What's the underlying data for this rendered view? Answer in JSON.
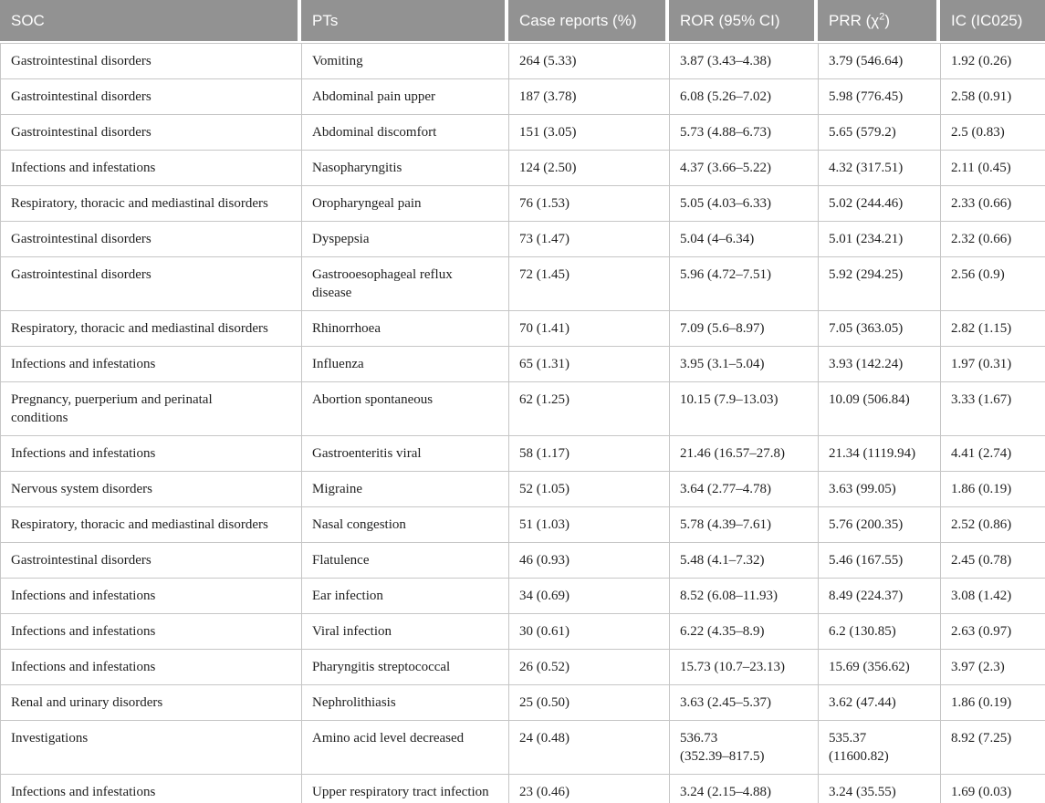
{
  "colors": {
    "header_bg": "#929292",
    "header_text": "#fdfdfd",
    "grid_border": "#c6c6c6",
    "body_text": "#1f1f1f"
  },
  "table": {
    "header": {
      "soc": "SOC",
      "pts": "PTs",
      "case_reports": "Case reports (%)",
      "ror": "ROR (95% CI)",
      "prr_prefix": "PRR (χ",
      "prr_sup": "2",
      "prr_suffix": ")",
      "ic": "IC (IC025)"
    },
    "rows": [
      {
        "soc": "Gastrointestinal disorders",
        "pt": "Vomiting",
        "cases": "264 (5.33)",
        "ror": "3.87 (3.43–4.38)",
        "prr": "3.79 (546.64)",
        "ic": "1.92 (0.26)"
      },
      {
        "soc": "Gastrointestinal disorders",
        "pt": "Abdominal pain upper",
        "cases": "187 (3.78)",
        "ror": "6.08 (5.26–7.02)",
        "prr": "5.98 (776.45)",
        "ic": "2.58 (0.91)"
      },
      {
        "soc": "Gastrointestinal disorders",
        "pt": "Abdominal discomfort",
        "cases": "151 (3.05)",
        "ror": "5.73 (4.88–6.73)",
        "prr": "5.65 (579.2)",
        "ic": "2.5 (0.83)"
      },
      {
        "soc": "Infections and infestations",
        "pt": "Nasopharyngitis",
        "cases": "124 (2.50)",
        "ror": "4.37 (3.66–5.22)",
        "prr": "4.32 (317.51)",
        "ic": "2.11 (0.45)"
      },
      {
        "soc": "Respiratory, thoracic and mediastinal disorders",
        "pt": "Oropharyngeal pain",
        "cases": "76 (1.53)",
        "ror": "5.05 (4.03–6.33)",
        "prr": "5.02 (244.46)",
        "ic": "2.33 (0.66)"
      },
      {
        "soc": "Gastrointestinal disorders",
        "pt": "Dyspepsia",
        "cases": "73 (1.47)",
        "ror": "5.04 (4–6.34)",
        "prr": "5.01 (234.21)",
        "ic": "2.32 (0.66)"
      },
      {
        "soc": "Gastrointestinal disorders",
        "pt": "Gastrooesophageal reflux\ndisease",
        "cases": "72 (1.45)",
        "ror": "5.96 (4.72–7.51)",
        "prr": "5.92 (294.25)",
        "ic": "2.56 (0.9)"
      },
      {
        "soc": "Respiratory, thoracic and mediastinal disorders",
        "pt": "Rhinorrhoea",
        "cases": "70 (1.41)",
        "ror": "7.09 (5.6–8.97)",
        "prr": "7.05 (363.05)",
        "ic": "2.82 (1.15)"
      },
      {
        "soc": "Infections and infestations",
        "pt": "Influenza",
        "cases": "65 (1.31)",
        "ror": "3.95 (3.1–5.04)",
        "prr": "3.93 (142.24)",
        "ic": "1.97 (0.31)"
      },
      {
        "soc": "Pregnancy, puerperium and perinatal\nconditions",
        "pt": "Abortion spontaneous",
        "cases": "62 (1.25)",
        "ror": "10.15 (7.9–13.03)",
        "prr": "10.09 (506.84)",
        "ic": "3.33 (1.67)"
      },
      {
        "soc": "Infections and infestations",
        "pt": "Gastroenteritis viral",
        "cases": "58 (1.17)",
        "ror": "21.46 (16.57–27.8)",
        "prr": "21.34 (1119.94)",
        "ic": "4.41 (2.74)"
      },
      {
        "soc": "Nervous system disorders",
        "pt": "Migraine",
        "cases": "52 (1.05)",
        "ror": "3.64 (2.77–4.78)",
        "prr": "3.63 (99.05)",
        "ic": "1.86 (0.19)"
      },
      {
        "soc": "Respiratory, thoracic and mediastinal disorders",
        "pt": "Nasal congestion",
        "cases": "51 (1.03)",
        "ror": "5.78 (4.39–7.61)",
        "prr": "5.76 (200.35)",
        "ic": "2.52 (0.86)"
      },
      {
        "soc": "Gastrointestinal disorders",
        "pt": "Flatulence",
        "cases": "46 (0.93)",
        "ror": "5.48 (4.1–7.32)",
        "prr": "5.46 (167.55)",
        "ic": "2.45 (0.78)"
      },
      {
        "soc": "Infections and infestations",
        "pt": "Ear infection",
        "cases": "34 (0.69)",
        "ror": "8.52 (6.08–11.93)",
        "prr": "8.49 (224.37)",
        "ic": "3.08 (1.42)"
      },
      {
        "soc": "Infections and infestations",
        "pt": "Viral infection",
        "cases": "30 (0.61)",
        "ror": "6.22 (4.35–8.9)",
        "prr": "6.2 (130.85)",
        "ic": "2.63 (0.97)"
      },
      {
        "soc": "Infections and infestations",
        "pt": "Pharyngitis streptococcal",
        "cases": "26 (0.52)",
        "ror": "15.73 (10.7–23.13)",
        "prr": "15.69 (356.62)",
        "ic": "3.97 (2.3)"
      },
      {
        "soc": "Renal and urinary disorders",
        "pt": "Nephrolithiasis",
        "cases": "25 (0.50)",
        "ror": "3.63 (2.45–5.37)",
        "prr": "3.62 (47.44)",
        "ic": "1.86 (0.19)"
      },
      {
        "soc": "Investigations",
        "pt": "Amino acid level decreased",
        "cases": "24 (0.48)",
        "ror": "536.73\n(352.39–817.5)",
        "prr": "535.37\n(11600.82)",
        "ic": "8.92 (7.25)"
      },
      {
        "soc": "Infections and infestations",
        "pt": "Upper respiratory tract infection",
        "cases": "23 (0.46)",
        "ror": "3.24 (2.15–4.88)",
        "prr": "3.24 (35.55)",
        "ic": "1.69 (0.03)"
      }
    ]
  }
}
